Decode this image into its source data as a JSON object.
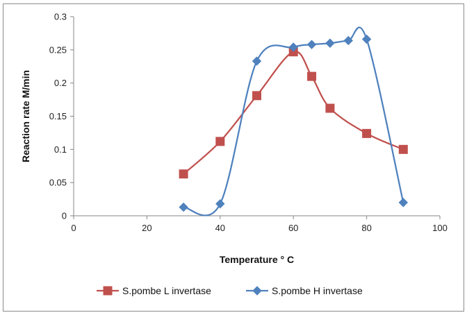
{
  "chart_data": {
    "type": "line",
    "title": "",
    "xlabel": "Temperature ° C",
    "ylabel": "Reaction rate M/min",
    "xlim": [
      0,
      100
    ],
    "ylim": [
      0,
      0.3
    ],
    "x_ticks": [
      "0",
      "20",
      "40",
      "60",
      "80",
      "100"
    ],
    "y_ticks": [
      "0",
      "0.05",
      "0.1",
      "0.15",
      "0.2",
      "0.25",
      "0.3"
    ],
    "grid": false,
    "legend_position": "bottom",
    "series": [
      {
        "name": "S.pombe L invertase",
        "marker": "square",
        "color": "#C0504D",
        "x": [
          30,
          40,
          50,
          60,
          65,
          70,
          80,
          90
        ],
        "y": [
          0.063,
          0.112,
          0.181,
          0.247,
          0.21,
          0.162,
          0.124,
          0.1
        ]
      },
      {
        "name": "S.pombe H invertase",
        "marker": "diamond",
        "color": "#4F81BD",
        "x": [
          30,
          40,
          50,
          60,
          65,
          70,
          75,
          80,
          90
        ],
        "y": [
          0.013,
          0.018,
          0.233,
          0.254,
          0.258,
          0.26,
          0.264,
          0.266,
          0.02
        ]
      }
    ]
  }
}
